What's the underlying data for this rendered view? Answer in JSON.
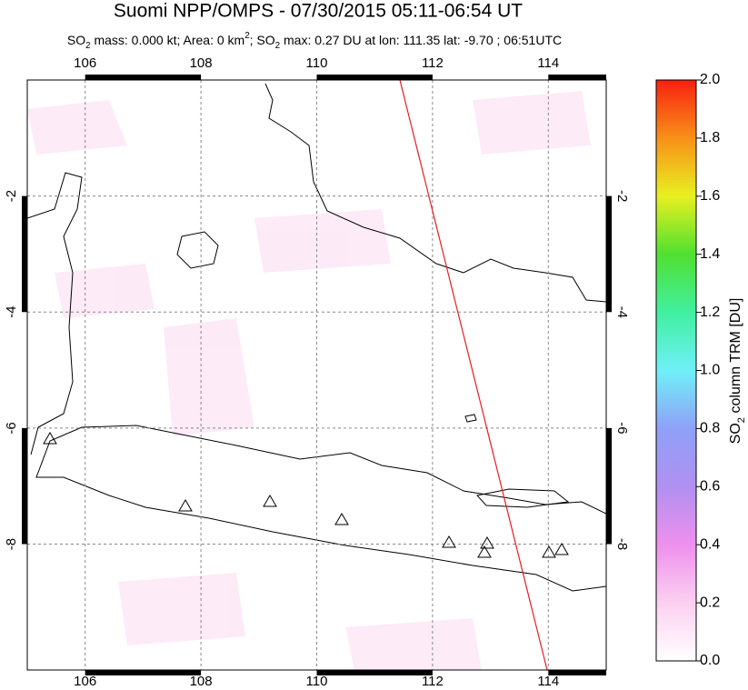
{
  "title": "Suomi NPP/OMPS - 07/30/2015 05:11-06:54 UT",
  "subtitle": [
    {
      "text": "SO"
    },
    {
      "text": "2",
      "sub": true
    },
    {
      "text": " mass: 0.000 kt; Area: 0 km"
    },
    {
      "text": "2",
      "sup": true
    },
    {
      "text": "; SO"
    },
    {
      "text": "2",
      "sub": true
    },
    {
      "text": " max: 0.27 DU at lon: 111.35 lat: -9.70 ; 06:51UTC"
    }
  ],
  "map": {
    "lonlim": [
      105,
      115
    ],
    "latlim": [
      -10.17,
      0
    ],
    "lonticks": [
      106,
      108,
      110,
      112,
      114
    ],
    "latticks": [
      -2,
      -4,
      -6,
      -8
    ],
    "grid": true
  },
  "colorbar": {
    "lim": [
      0,
      2
    ],
    "ticks": [
      {
        "value": 0,
        "label": "0.0"
      },
      {
        "value": 0.2,
        "label": "0.2"
      },
      {
        "value": 0.4,
        "label": "0.4"
      },
      {
        "value": 0.6,
        "label": "0.6"
      },
      {
        "value": 0.8,
        "label": "0.8"
      },
      {
        "value": 1,
        "label": "1.0"
      },
      {
        "value": 1.2,
        "label": "1.2"
      },
      {
        "value": 1.4,
        "label": "1.4"
      },
      {
        "value": 1.6,
        "label": "1.6"
      },
      {
        "value": 1.8,
        "label": "1.8"
      },
      {
        "value": 2,
        "label": "2.0"
      }
    ],
    "label": [
      {
        "text": "SO"
      },
      {
        "text": "2",
        "sub": true
      },
      {
        "text": " column TRM [DU]"
      }
    ]
  }
}
